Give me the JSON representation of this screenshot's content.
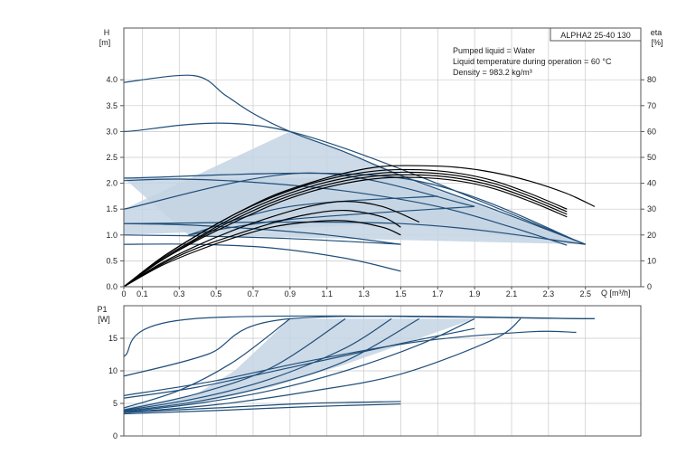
{
  "chart_data": [
    {
      "type": "line",
      "title": "ALPHA2 25-40 130",
      "notes": [
        "Pumped liquid = Water",
        "Liquid temperature during operation = 60 °C",
        "Density = 983.2 kg/m³"
      ],
      "ylabel": "H",
      "yunit": "[m]",
      "y2label": "eta",
      "y2unit": "[%]",
      "xlabel": "Q [m³/h]",
      "xlim": [
        0,
        2.8
      ],
      "ylim": [
        0,
        5
      ],
      "y2lim": [
        0,
        100
      ],
      "x_ticks": [
        0,
        0.1,
        0.3,
        0.5,
        0.7,
        0.9,
        1.1,
        1.3,
        1.5,
        1.7,
        1.9,
        2.1,
        2.3,
        2.5
      ],
      "x_tick_labels": [
        "0",
        "0.1",
        "0.3",
        "0.5",
        "0.7",
        "0.9",
        "1.1",
        "1.3",
        "1.5",
        "1.7",
        "1.9",
        "2.1",
        "2.3",
        "2.5"
      ],
      "y_ticks": [
        0,
        0.5,
        1,
        1.5,
        2,
        2.5,
        3,
        3.5,
        4
      ],
      "y_tick_labels": [
        "0.0",
        "0.5",
        "1.0",
        "1.5",
        "2.0",
        "2.5",
        "3.0",
        "3.5",
        "4.0"
      ],
      "y2_ticks": [
        0,
        10,
        20,
        30,
        40,
        50,
        60,
        70,
        80
      ],
      "y2_tick_labels": [
        "0",
        "10",
        "20",
        "30",
        "40",
        "50",
        "60",
        "70",
        "80"
      ],
      "grid": true,
      "line_color": "#1f4e79",
      "eta_color": "#000000",
      "fill_color": "#c4d3e3",
      "regions": [
        {
          "points": [
            [
              0,
              1.5
            ],
            [
              0.9,
              3.0
            ],
            [
              2.5,
              0.82
            ],
            [
              1.5,
              1.22
            ],
            [
              0,
              1.0
            ]
          ]
        },
        {
          "points": [
            [
              0,
              2.1
            ],
            [
              1.5,
              2.1
            ],
            [
              2.5,
              0.82
            ],
            [
              0.35,
              1.0
            ]
          ]
        }
      ],
      "series": [
        {
          "role": "head",
          "x": [
            0,
            0.38,
            0.55,
            0.7,
            0.9,
            1.2,
            1.5,
            2.0,
            2.5
          ],
          "values": [
            3.95,
            4.08,
            3.7,
            3.35,
            3.0,
            2.6,
            2.15,
            1.5,
            0.82
          ]
        },
        {
          "role": "head",
          "x": [
            0,
            0.9,
            2.5
          ],
          "values": [
            3.0,
            3.0,
            0.82
          ]
        },
        {
          "role": "head",
          "x": [
            0,
            1.5,
            2.5
          ],
          "values": [
            2.1,
            2.1,
            0.82
          ]
        },
        {
          "role": "head",
          "x": [
            0,
            1.5,
            2.5
          ],
          "values": [
            1.22,
            1.22,
            0.82
          ]
        },
        {
          "role": "head",
          "x": [
            0,
            1.0,
            1.9
          ],
          "values": [
            1.5,
            2.2,
            1.55
          ]
        },
        {
          "role": "head",
          "x": [
            0,
            0.3,
            0.7,
            1.2,
            1.7,
            2.1,
            2.4
          ],
          "values": [
            2.05,
            2.08,
            2.02,
            1.85,
            1.55,
            1.15,
            0.8
          ]
        },
        {
          "role": "head",
          "x": [
            0,
            0.3,
            0.7,
            1.1,
            1.5
          ],
          "values": [
            1.22,
            1.2,
            1.12,
            1.0,
            0.82
          ]
        },
        {
          "role": "head",
          "x": [
            0,
            0.4,
            0.8,
            1.2,
            1.5
          ],
          "values": [
            0.82,
            0.82,
            0.75,
            0.55,
            0.3
          ]
        },
        {
          "role": "head",
          "x": [
            0,
            0.4,
            0.9,
            1.5
          ],
          "values": [
            1.0,
            0.98,
            0.93,
            0.82
          ]
        },
        {
          "role": "head",
          "x": [
            0.35,
            0.9,
            1.9
          ],
          "values": [
            1.0,
            1.3,
            1.55
          ]
        },
        {
          "role": "head",
          "x": [
            0.35,
            0.9,
            1.7
          ],
          "values": [
            1.0,
            1.55,
            1.75
          ]
        },
        {
          "role": "eta",
          "x": [
            0,
            0.2,
            0.4,
            0.6,
            0.8,
            1.0,
            1.2,
            1.4,
            1.6,
            1.8,
            2.0,
            2.2,
            2.4,
            2.55
          ],
          "values": [
            0,
            11,
            20,
            28,
            35,
            40,
            44,
            46.5,
            46.8,
            46.2,
            44.2,
            40.8,
            36,
            31
          ]
        },
        {
          "role": "eta",
          "x": [
            0,
            0.2,
            0.4,
            0.6,
            0.8,
            1.0,
            1.2,
            1.4,
            1.6,
            1.8,
            2.0,
            2.2,
            2.4
          ],
          "values": [
            0,
            11,
            20,
            28,
            34.5,
            39.5,
            43,
            45,
            45.2,
            44,
            41,
            36,
            30
          ]
        },
        {
          "role": "eta",
          "x": [
            0,
            0.2,
            0.4,
            0.6,
            0.8,
            1.0,
            1.2,
            1.4,
            1.6,
            1.8,
            2.0,
            2.2,
            2.4
          ],
          "values": [
            0,
            10.5,
            19,
            27,
            33.5,
            38.5,
            42,
            44,
            44.2,
            43,
            40,
            35,
            29
          ]
        },
        {
          "role": "eta",
          "x": [
            0,
            0.2,
            0.4,
            0.6,
            0.8,
            1.0,
            1.2,
            1.4,
            1.6,
            1.8,
            2.0,
            2.2,
            2.4
          ],
          "values": [
            0,
            10,
            18.5,
            26,
            32.5,
            37.5,
            41,
            43,
            43.2,
            42,
            39,
            34,
            28
          ]
        },
        {
          "role": "eta",
          "x": [
            0,
            0.2,
            0.4,
            0.6,
            0.8,
            1.0,
            1.2,
            1.4,
            1.6,
            1.8,
            2.0,
            2.2,
            2.4
          ],
          "values": [
            0,
            10,
            18,
            25,
            31.5,
            36.5,
            40,
            42,
            42.2,
            41,
            38,
            33,
            27
          ]
        },
        {
          "role": "eta",
          "x": [
            0,
            0.2,
            0.4,
            0.6,
            0.8,
            1.0,
            1.2,
            1.4,
            1.6
          ],
          "values": [
            0,
            9,
            16,
            22,
            27,
            31,
            33,
            31,
            25
          ]
        },
        {
          "role": "eta",
          "x": [
            0,
            0.2,
            0.4,
            0.6,
            0.8,
            1.0,
            1.2,
            1.4,
            1.5
          ],
          "values": [
            0,
            8.5,
            15,
            20,
            24.5,
            28,
            29.5,
            27,
            23
          ]
        },
        {
          "role": "eta",
          "x": [
            0,
            0.2,
            0.4,
            0.6,
            0.8,
            1.0,
            1.2,
            1.4,
            1.5
          ],
          "values": [
            0,
            8,
            14,
            19,
            23,
            25,
            25.5,
            23,
            20
          ]
        }
      ]
    },
    {
      "type": "line",
      "ylabel": "P1",
      "yunit": "[W]",
      "xlim": [
        0,
        2.8
      ],
      "ylim": [
        0,
        20
      ],
      "y_ticks": [
        0,
        5,
        10,
        15
      ],
      "y_tick_labels": [
        "0",
        "5",
        "10",
        "15"
      ],
      "grid": true,
      "line_color": "#1f4e79",
      "fill_color": "#c4d3e3",
      "regions": [
        {
          "points": [
            [
              0,
              4.3
            ],
            [
              0.38,
              6.2
            ],
            [
              0.6,
              10.0
            ],
            [
              0.9,
              18.0
            ],
            [
              1.9,
              18.0
            ],
            [
              1.6,
              15.0
            ],
            [
              1.2,
              11.0
            ],
            [
              0.8,
              7.5
            ],
            [
              0.4,
              5.0
            ],
            [
              0,
              3.8
            ]
          ]
        }
      ],
      "series": [
        {
          "x": [
            0,
            0.38,
            2.55
          ],
          "values": [
            12.2,
            18.0,
            18.0
          ]
        },
        {
          "x": [
            0,
            0.45,
            0.9,
            2.55
          ],
          "values": [
            9.2,
            12.5,
            18.0,
            18.0
          ]
        },
        {
          "x": [
            0,
            0.5,
            1.0,
            1.6,
            2.2,
            2.45
          ],
          "values": [
            6.2,
            8.5,
            11.5,
            14.5,
            16.0,
            15.9
          ]
        },
        {
          "x": [
            0,
            0.4,
            0.9,
            1.5,
            1.9
          ],
          "values": [
            5.8,
            7.5,
            10.5,
            14.2,
            16.5
          ]
        },
        {
          "x": [
            0,
            0.3,
            0.6,
            0.9
          ],
          "values": [
            4.3,
            7.0,
            11.5,
            18.0
          ]
        },
        {
          "x": [
            0,
            0.4,
            0.8,
            1.2
          ],
          "values": [
            4.0,
            6.5,
            10.5,
            18.0
          ]
        },
        {
          "x": [
            0,
            0.4,
            0.8,
            1.2,
            1.45
          ],
          "values": [
            3.9,
            5.8,
            8.8,
            13.5,
            18.0
          ]
        },
        {
          "x": [
            0,
            0.4,
            0.8,
            1.2,
            1.6
          ],
          "values": [
            3.8,
            5.3,
            7.8,
            11.5,
            18.0
          ]
        },
        {
          "x": [
            0,
            0.4,
            0.8,
            1.2,
            1.6,
            1.9
          ],
          "values": [
            3.7,
            5.0,
            7.0,
            10.0,
            14.0,
            18.0
          ]
        },
        {
          "x": [
            0,
            0.5,
            1.0,
            1.5,
            2.0,
            2.15
          ],
          "values": [
            3.6,
            4.8,
            6.8,
            9.5,
            14.8,
            18.0
          ]
        },
        {
          "x": [
            0,
            0.5,
            1.0,
            1.5
          ],
          "values": [
            3.6,
            4.3,
            5.0,
            5.3
          ]
        },
        {
          "x": [
            0,
            0.5,
            1.0,
            1.5
          ],
          "values": [
            3.4,
            3.9,
            4.5,
            4.9
          ]
        }
      ]
    }
  ]
}
